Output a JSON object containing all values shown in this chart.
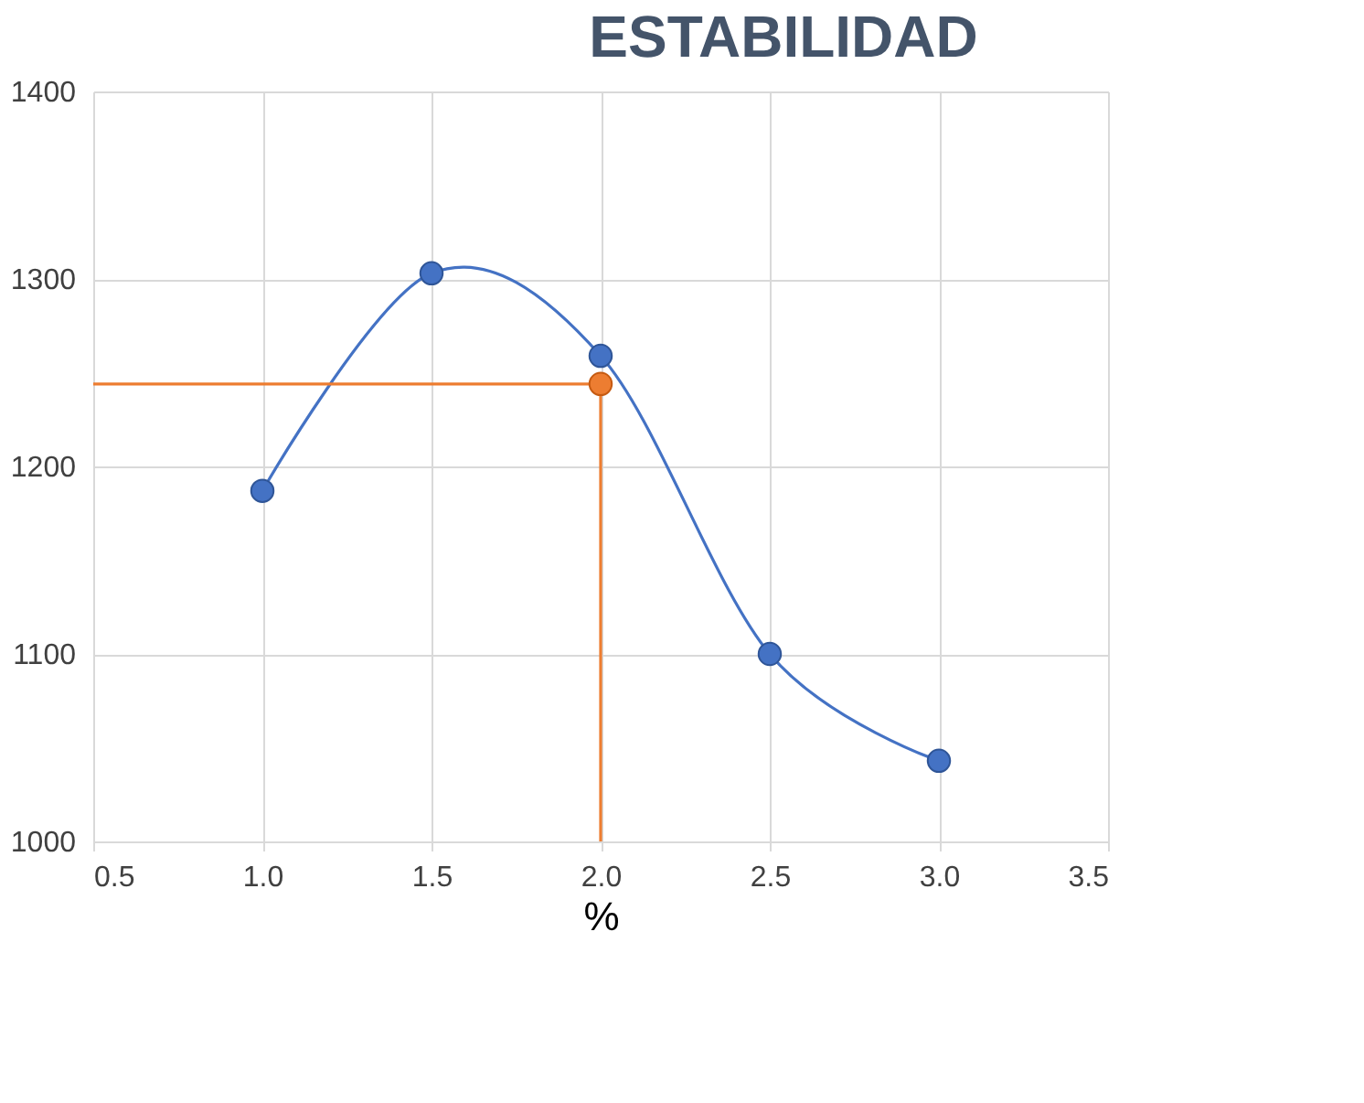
{
  "chart_data": {
    "type": "line",
    "title": "ESTABILIDAD",
    "xlabel": "%",
    "xlim": [
      0.5,
      3.5
    ],
    "xticks": [
      {
        "value": 0.5,
        "label": "0.5"
      },
      {
        "value": 1,
        "label": "1.0"
      },
      {
        "value": 1.5,
        "label": "1.5"
      },
      {
        "value": 2,
        "label": "2.0"
      },
      {
        "value": 2.5,
        "label": "2.5"
      },
      {
        "value": 3,
        "label": "3.0"
      },
      {
        "value": 3.5,
        "label": "3.5"
      }
    ],
    "ylim": [
      1000,
      1400
    ],
    "yticks": [
      1000,
      1100,
      1200,
      1300,
      1400
    ],
    "grid": true,
    "series": [
      {
        "color": "#4472c4",
        "marker": "circle",
        "x": [
          1.0,
          1.5,
          2.0,
          2.5,
          3.0
        ],
        "values": [
          1187,
          1303,
          1259,
          1100,
          1043
        ]
      },
      {
        "type": "line",
        "color": "#ed7d31",
        "marker": "none",
        "x": [
          0.5,
          2.0,
          2.0
        ],
        "values": [
          1244,
          1244,
          1000
        ]
      },
      {
        "type": "scatter",
        "color": "#ed7d31",
        "marker": "circle",
        "x": [
          2.0
        ],
        "values": [
          1244
        ]
      }
    ]
  }
}
